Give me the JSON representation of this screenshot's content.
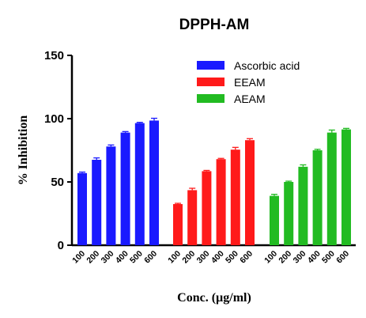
{
  "chart_data": {
    "type": "bar",
    "title": "DPPH-AM",
    "ylabel": "% Inhibition",
    "xlabel": "Conc. (µg/ml)",
    "ylim": [
      0,
      150
    ],
    "yticks": [
      0,
      50,
      100,
      150
    ],
    "categories": [
      "100",
      "200",
      "300",
      "400",
      "500",
      "600"
    ],
    "legend_position": "top-right",
    "grid": false,
    "error_bars": true,
    "series": [
      {
        "name": "Ascorbic acid",
        "color": "#1a1aff",
        "values": [
          57,
          67.5,
          78,
          89,
          96.5,
          98.5
        ],
        "errors": [
          0.8,
          1.5,
          1.2,
          0.8,
          0.6,
          1.8
        ]
      },
      {
        "name": "EEAM",
        "color": "#ff1a1a",
        "values": [
          32.5,
          43.5,
          58.5,
          68,
          75.5,
          83
        ],
        "errors": [
          0.6,
          1.5,
          0.6,
          0.6,
          1.8,
          1.2
        ]
      },
      {
        "name": "AEAM",
        "color": "#22bb22",
        "values": [
          39,
          50,
          62,
          75,
          89,
          91.5
        ],
        "errors": [
          1.2,
          0.6,
          1.5,
          0.8,
          2.0,
          0.8
        ]
      }
    ]
  }
}
